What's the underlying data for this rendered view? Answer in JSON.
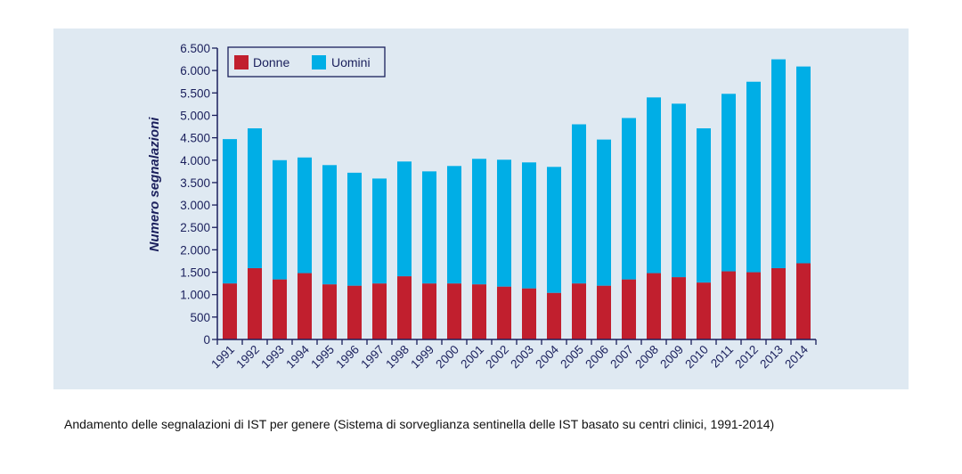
{
  "chart_data": {
    "type": "bar",
    "stacked": true,
    "categories": [
      "1991",
      "1992",
      "1993",
      "1994",
      "1995",
      "1996",
      "1997",
      "1998",
      "1999",
      "2000",
      "2001",
      "2002",
      "2003",
      "2004",
      "2005",
      "2006",
      "2007",
      "2008",
      "2009",
      "2010",
      "2011",
      "2012",
      "2013",
      "2014"
    ],
    "series": [
      {
        "name": "Donne",
        "color": "#c11f2e",
        "values": [
          1250,
          1590,
          1340,
          1480,
          1230,
          1200,
          1250,
          1410,
          1250,
          1250,
          1230,
          1180,
          1140,
          1040,
          1250,
          1200,
          1340,
          1480,
          1390,
          1270,
          1520,
          1500,
          1590,
          1700
        ]
      },
      {
        "name": "Uomini",
        "color": "#00aee6",
        "values": [
          3220,
          3120,
          2660,
          2580,
          2660,
          2520,
          2340,
          2560,
          2500,
          2620,
          2800,
          2830,
          2810,
          2810,
          3550,
          3260,
          3600,
          3920,
          3870,
          3440,
          3960,
          4250,
          4660,
          4390
        ]
      }
    ],
    "ylabel": "Numero segnalazioni",
    "xlabel": "",
    "ylim": [
      0,
      6500
    ],
    "yticks": [
      0,
      500,
      1000,
      1500,
      2000,
      2500,
      3000,
      3500,
      4000,
      4500,
      5000,
      5500,
      6000,
      6500
    ],
    "ytick_labels": [
      "0",
      "500",
      "1.000",
      "1.500",
      "2.000",
      "2.500",
      "3.000",
      "3.500",
      "4.000",
      "4.500",
      "5.000",
      "5.500",
      "6.000",
      "6.500"
    ],
    "legend_position": "top-left"
  },
  "caption": "Andamento delle segnalazioni di IST per genere  (Sistema di sorveglianza sentinella delle IST basato su centri  clinici, 1991-2014)",
  "colors": {
    "axis": "#1a1f5c",
    "panel_background": "#dfe9f2",
    "donne": "#c11f2e",
    "uomini": "#00aee6"
  }
}
